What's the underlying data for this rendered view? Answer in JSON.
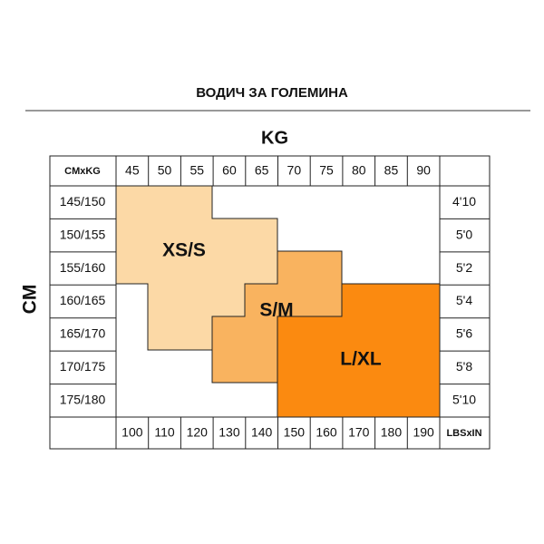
{
  "header": {
    "title": "ВОДИЧ ЗА ГОЛЕМИНА"
  },
  "table": {
    "x_label": "KG",
    "y_label": "CM",
    "corner_top": "CMxKG",
    "corner_bottom": "LBSxIN",
    "kg": [
      "45",
      "50",
      "55",
      "60",
      "65",
      "70",
      "75",
      "80",
      "85",
      "90"
    ],
    "lbs": [
      "100",
      "110",
      "120",
      "130",
      "140",
      "150",
      "160",
      "170",
      "180",
      "190"
    ],
    "cm": [
      "145/150",
      "150/155",
      "155/160",
      "160/165",
      "165/170",
      "170/175",
      "175/180"
    ],
    "in": [
      "4'10",
      "5'0",
      "5'2",
      "5'4",
      "5'6",
      "5'8",
      "5'10"
    ]
  },
  "sizes": [
    {
      "label": "XS/S"
    },
    {
      "label": "S/M"
    },
    {
      "label": "L/XL"
    }
  ]
}
